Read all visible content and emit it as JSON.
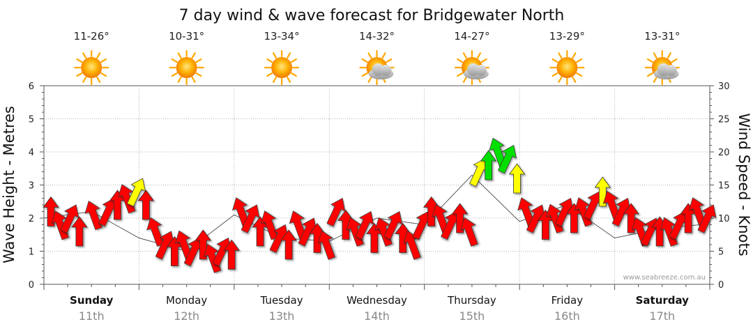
{
  "chart_data": {
    "type": "line",
    "title": "7 day wind & wave forecast for Bridgewater North",
    "ylabel_left": "Wave Height - Metres",
    "ylabel_right": "Wind Speed - Knots",
    "ylim_left": [
      0,
      6
    ],
    "yticks_left": [
      "0",
      "1",
      "2",
      "3",
      "4",
      "5",
      "6"
    ],
    "ylim_right": [
      0,
      30
    ],
    "yticks_right": [
      "0",
      "5",
      "10",
      "15",
      "20",
      "25",
      "30"
    ],
    "credit": "www.seabreeze.com.au",
    "days": [
      {
        "name": "Sunday",
        "date": "11th",
        "bold": true,
        "temp": "11-26°",
        "weather_icon": "sun-icon"
      },
      {
        "name": "Monday",
        "date": "12th",
        "bold": false,
        "temp": "10-31°",
        "weather_icon": "sun-icon"
      },
      {
        "name": "Tuesday",
        "date": "13th",
        "bold": false,
        "temp": "13-34°",
        "weather_icon": "sun-icon"
      },
      {
        "name": "Wednesday",
        "date": "14th",
        "bold": false,
        "temp": "14-32°",
        "weather_icon": "sun-cloud-icon"
      },
      {
        "name": "Thursday",
        "date": "15th",
        "bold": false,
        "temp": "14-27°",
        "weather_icon": "sun-cloud-icon"
      },
      {
        "name": "Friday",
        "date": "16th",
        "bold": false,
        "temp": "13-29°",
        "weather_icon": "sun-icon"
      },
      {
        "name": "Saturday",
        "date": "17th",
        "bold": true,
        "temp": "13-31°",
        "weather_icon": "sun-cloud-icon"
      }
    ],
    "wind_color_scale": [
      {
        "max_knots": 13,
        "color": "#ff0000"
      },
      {
        "max_knots": 17,
        "color": "#ffff00"
      },
      {
        "max_knots": 30,
        "color": "#00e000"
      }
    ],
    "wind_series": {
      "name": "Wind Speed - Knots",
      "day_offset": [
        0.0,
        0.1,
        0.2,
        0.3,
        0.45,
        0.6,
        0.7,
        0.8,
        0.9,
        1.0,
        1.1,
        1.2,
        1.3,
        1.4,
        1.5,
        1.6,
        1.7,
        1.8,
        1.9,
        2.0,
        2.1,
        2.2,
        2.3,
        2.4,
        2.5,
        2.6,
        2.7,
        2.8,
        2.9,
        3.0,
        3.1,
        3.2,
        3.3,
        3.4,
        3.5,
        3.6,
        3.7,
        3.8,
        3.9,
        4.0,
        4.1,
        4.2,
        4.3,
        4.4,
        4.5,
        4.6,
        4.7,
        4.8,
        4.9,
        5.0,
        5.1,
        5.2,
        5.3,
        5.4,
        5.5,
        5.6,
        5.7,
        5.8,
        5.9,
        6.0,
        6.1,
        6.2,
        6.3,
        6.4,
        6.5,
        6.6,
        6.7,
        6.8,
        6.9
      ],
      "knots": [
        11,
        9,
        10,
        8,
        10.5,
        11,
        12,
        13,
        14,
        12,
        8,
        6,
        5,
        6,
        5,
        6,
        4,
        5,
        4.5,
        11,
        10,
        8,
        9,
        7,
        6,
        9,
        8,
        7,
        6,
        11,
        9,
        8,
        9,
        7,
        8,
        9,
        7,
        6,
        9,
        11,
        10,
        9,
        10,
        8,
        17,
        18,
        20,
        19,
        16,
        11,
        10,
        9,
        10,
        11,
        10,
        11,
        12,
        14,
        12,
        11,
        10,
        8,
        8,
        8,
        8,
        9,
        10,
        11,
        10
      ]
    },
    "wave_series": {
      "name": "Wave Height - Metres",
      "day_offset": [
        0.0,
        0.5,
        1.0,
        1.5,
        2.0,
        2.5,
        3.0,
        3.5,
        4.0,
        4.5,
        5.0,
        5.5,
        6.0,
        6.5,
        6.9
      ],
      "metres": [
        2.0,
        2.2,
        1.4,
        1.0,
        2.1,
        1.4,
        1.3,
        2.0,
        1.8,
        3.3,
        1.9,
        2.4,
        1.4,
        1.7,
        1.8
      ]
    }
  }
}
